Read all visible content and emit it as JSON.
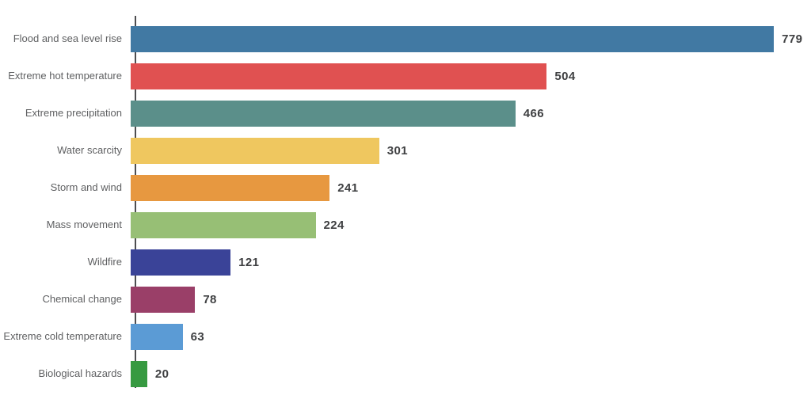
{
  "chart_data": {
    "type": "bar",
    "orientation": "horizontal",
    "title": "",
    "xlabel": "",
    "ylabel": "",
    "categories": [
      "Flood and sea level rise",
      "Extreme hot temperature",
      "Extreme precipitation",
      "Water scarcity",
      "Storm and wind",
      "Mass movement",
      "Wildfire",
      "Chemical change",
      "Extreme cold temperature",
      "Biological hazards"
    ],
    "values": [
      779,
      504,
      466,
      301,
      241,
      224,
      121,
      78,
      63,
      20
    ],
    "bar_colors": [
      "#4179a3",
      "#e05151",
      "#5b8f8a",
      "#efc75f",
      "#e79840",
      "#97bf75",
      "#3a4398",
      "#9a3f68",
      "#5b9bd5",
      "#379a41"
    ],
    "xlim": [
      0,
      824
    ],
    "grid": false,
    "legend": false,
    "value_labels": true,
    "tick_labels": []
  },
  "style": {
    "background": "#ffffff",
    "axis_color": "#4d4d4f",
    "category_label_color": "#5f6062",
    "value_label_color": "#3f4042"
  }
}
